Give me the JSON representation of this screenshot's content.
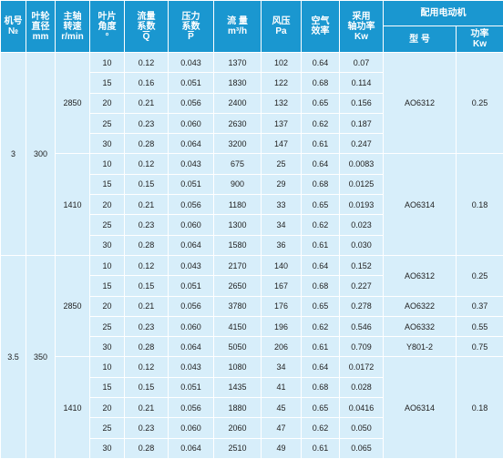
{
  "header": {
    "machine_no": [
      "机号",
      "№"
    ],
    "impeller_dia": [
      "叶轮",
      "直径",
      "mm"
    ],
    "spindle_speed": [
      "主轴",
      "转速",
      "r/min"
    ],
    "blade_angle": [
      "叶片",
      "角度",
      "°"
    ],
    "flow_coef": [
      "流量",
      "系数",
      "Q"
    ],
    "pressure_coef": [
      "压力",
      "系数",
      "P"
    ],
    "flow": [
      "流 量",
      "m³/h"
    ],
    "pressure": [
      "风压",
      "Pa"
    ],
    "air_eff": [
      "空气",
      "效率"
    ],
    "shaft_power": [
      "采用",
      "轴功率",
      "Kw"
    ],
    "motor_group": "配用电动机",
    "motor_model": "型 号",
    "motor_power": [
      "功率",
      "Kw"
    ]
  },
  "rows": [
    {
      "angle": "10",
      "q": "0.12",
      "p": "0.043",
      "flow": "1370",
      "pa": "102",
      "eff": "0.64",
      "kw": "0.07"
    },
    {
      "angle": "15",
      "q": "0.16",
      "p": "0.051",
      "flow": "1830",
      "pa": "122",
      "eff": "0.68",
      "kw": "0.114"
    },
    {
      "angle": "20",
      "q": "0.21",
      "p": "0.056",
      "flow": "2400",
      "pa": "132",
      "eff": "0.65",
      "kw": "0.156"
    },
    {
      "angle": "25",
      "q": "0.23",
      "p": "0.060",
      "flow": "2630",
      "pa": "137",
      "eff": "0.62",
      "kw": "0.187"
    },
    {
      "angle": "30",
      "q": "0.28",
      "p": "0.064",
      "flow": "3200",
      "pa": "147",
      "eff": "0.61",
      "kw": "0.247"
    },
    {
      "angle": "10",
      "q": "0.12",
      "p": "0.043",
      "flow": "675",
      "pa": "25",
      "eff": "0.64",
      "kw": "0.0083"
    },
    {
      "angle": "15",
      "q": "0.15",
      "p": "0.051",
      "flow": "900",
      "pa": "29",
      "eff": "0.68",
      "kw": "0.0125"
    },
    {
      "angle": "20",
      "q": "0.21",
      "p": "0.056",
      "flow": "1180",
      "pa": "33",
      "eff": "0.65",
      "kw": "0.0193"
    },
    {
      "angle": "25",
      "q": "0.23",
      "p": "0.060",
      "flow": "1300",
      "pa": "34",
      "eff": "0.62",
      "kw": "0.023"
    },
    {
      "angle": "30",
      "q": "0.28",
      "p": "0.064",
      "flow": "1580",
      "pa": "36",
      "eff": "0.61",
      "kw": "0.030"
    },
    {
      "angle": "10",
      "q": "0.12",
      "p": "0.043",
      "flow": "2170",
      "pa": "140",
      "eff": "0.64",
      "kw": "0.152"
    },
    {
      "angle": "15",
      "q": "0.15",
      "p": "0.051",
      "flow": "2650",
      "pa": "167",
      "eff": "0.68",
      "kw": "0.227"
    },
    {
      "angle": "20",
      "q": "0.21",
      "p": "0.056",
      "flow": "3780",
      "pa": "176",
      "eff": "0.65",
      "kw": "0.278"
    },
    {
      "angle": "25",
      "q": "0.23",
      "p": "0.060",
      "flow": "4150",
      "pa": "196",
      "eff": "0.62",
      "kw": "0.546"
    },
    {
      "angle": "30",
      "q": "0.28",
      "p": "0.064",
      "flow": "5050",
      "pa": "206",
      "eff": "0.61",
      "kw": "0.709"
    },
    {
      "angle": "10",
      "q": "0.12",
      "p": "0.043",
      "flow": "1080",
      "pa": "34",
      "eff": "0.64",
      "kw": "0.0172"
    },
    {
      "angle": "15",
      "q": "0.15",
      "p": "0.051",
      "flow": "1435",
      "pa": "41",
      "eff": "0.68",
      "kw": "0.028"
    },
    {
      "angle": "20",
      "q": "0.21",
      "p": "0.056",
      "flow": "1880",
      "pa": "45",
      "eff": "0.65",
      "kw": "0.0416"
    },
    {
      "angle": "25",
      "q": "0.23",
      "p": "0.060",
      "flow": "2060",
      "pa": "47",
      "eff": "0.62",
      "kw": "0.050"
    },
    {
      "angle": "30",
      "q": "0.28",
      "p": "0.064",
      "flow": "2510",
      "pa": "49",
      "eff": "0.61",
      "kw": "0.065"
    }
  ],
  "machines": [
    {
      "no": "3",
      "dia": "300"
    },
    {
      "no": "3.5",
      "dia": "350"
    }
  ],
  "speeds": [
    "2850",
    "1410",
    "2850",
    "1410"
  ],
  "motors": [
    {
      "model": "AO6312",
      "power": "0.25"
    },
    {
      "model": "AO6314",
      "power": "0.18"
    },
    {
      "model": "AO6312",
      "power": "0.25"
    },
    {
      "model": "AO6322",
      "power": "0.37"
    },
    {
      "model": "AO6332",
      "power": "0.55"
    },
    {
      "model": "Y801-2",
      "power": "0.75"
    },
    {
      "model": "AO6314",
      "power": "0.18"
    }
  ],
  "colors": {
    "header_bg": "#1a97d0",
    "cell_bg": "#d7eefa",
    "text": "#222222"
  }
}
